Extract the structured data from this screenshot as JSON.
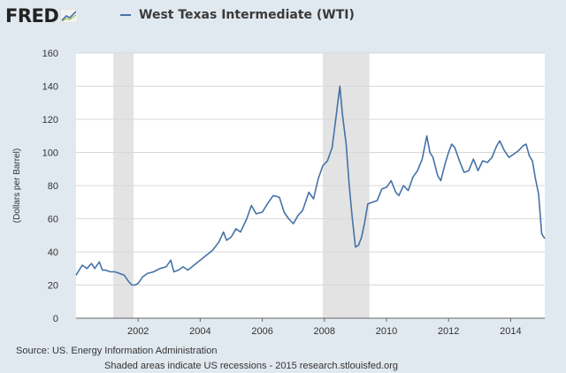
{
  "header": {
    "logo_text": "FRED",
    "series_title": "West Texas Intermediate (WTI)"
  },
  "colors": {
    "background": "#e1e9f0",
    "plot_background": "#ffffff",
    "series_line": "#4572a7",
    "recession_shade": "#e3e3e3"
  },
  "footer": {
    "source": "Source: US. Energy Information Administration",
    "note": "Shaded areas indicate US recessions - 2015 research.stlouisfed.org"
  },
  "chart_data": {
    "type": "line",
    "title": "West Texas Intermediate (WTI)",
    "xlabel": "",
    "ylabel": "(Dollars per Barrel)",
    "xlim": [
      2000.0,
      2015.1
    ],
    "ylim": [
      0,
      160
    ],
    "yticks": [
      0,
      20,
      40,
      60,
      80,
      100,
      120,
      140,
      160
    ],
    "xticks": [
      2002,
      2004,
      2006,
      2008,
      2010,
      2012,
      2014
    ],
    "grid": true,
    "recessions": [
      [
        2001.2,
        2001.85
      ],
      [
        2007.95,
        2009.45
      ]
    ],
    "series": [
      {
        "name": "West Texas Intermediate (WTI)",
        "x": [
          2000.0,
          2000.2,
          2000.35,
          2000.5,
          2000.6,
          2000.75,
          2000.85,
          2000.95,
          2001.1,
          2001.25,
          2001.4,
          2001.55,
          2001.7,
          2001.8,
          2001.9,
          2002.0,
          2002.15,
          2002.3,
          2002.5,
          2002.7,
          2002.9,
          2003.05,
          2003.15,
          2003.3,
          2003.45,
          2003.6,
          2003.8,
          2004.0,
          2004.2,
          2004.4,
          2004.6,
          2004.75,
          2004.85,
          2005.0,
          2005.15,
          2005.3,
          2005.5,
          2005.65,
          2005.8,
          2006.0,
          2006.2,
          2006.35,
          2006.55,
          2006.7,
          2006.85,
          2007.0,
          2007.15,
          2007.3,
          2007.5,
          2007.65,
          2007.8,
          2007.95,
          2008.1,
          2008.25,
          2008.4,
          2008.5,
          2008.58,
          2008.7,
          2008.8,
          2008.9,
          2009.0,
          2009.1,
          2009.2,
          2009.3,
          2009.4,
          2009.55,
          2009.7,
          2009.85,
          2010.0,
          2010.15,
          2010.3,
          2010.4,
          2010.55,
          2010.7,
          2010.85,
          2011.0,
          2011.15,
          2011.3,
          2011.4,
          2011.5,
          2011.65,
          2011.75,
          2011.9,
          2012.0,
          2012.1,
          2012.2,
          2012.35,
          2012.5,
          2012.65,
          2012.8,
          2012.95,
          2013.1,
          2013.25,
          2013.4,
          2013.55,
          2013.65,
          2013.8,
          2013.95,
          2014.1,
          2014.25,
          2014.4,
          2014.5,
          2014.6,
          2014.7,
          2014.8,
          2014.9,
          2015.0,
          2015.1
        ],
        "values": [
          26,
          32,
          30,
          33,
          30,
          34,
          29,
          29,
          28,
          28,
          27,
          26,
          22,
          20,
          20,
          21,
          25,
          27,
          28,
          30,
          31,
          35,
          28,
          29,
          31,
          29,
          32,
          35,
          38,
          41,
          46,
          52,
          47,
          49,
          54,
          52,
          60,
          68,
          63,
          64,
          70,
          74,
          73,
          64,
          60,
          57,
          62,
          65,
          76,
          72,
          84,
          92,
          95,
          103,
          125,
          140,
          123,
          105,
          80,
          60,
          43,
          44,
          49,
          58,
          69,
          70,
          71,
          78,
          79,
          83,
          76,
          74,
          80,
          77,
          85,
          89,
          96,
          110,
          100,
          97,
          86,
          83,
          94,
          100,
          105,
          103,
          95,
          88,
          89,
          96,
          89,
          95,
          94,
          97,
          104,
          107,
          101,
          97,
          99,
          101,
          104,
          105,
          98,
          95,
          84,
          75,
          51,
          48
        ]
      }
    ]
  }
}
